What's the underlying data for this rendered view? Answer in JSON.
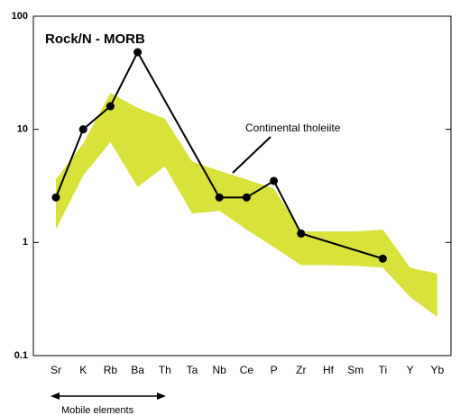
{
  "chart_data": {
    "type": "line",
    "title": "Rock/N - MORB",
    "categories": [
      "Sr",
      "K",
      "Rb",
      "Ba",
      "Th",
      "Ta",
      "Nb",
      "Ce",
      "P",
      "Zr",
      "Hf",
      "Sm",
      "Ti",
      "Y",
      "Yb"
    ],
    "series": [
      {
        "name": "Rock",
        "color": "#000000",
        "values": [
          2.5,
          10,
          16,
          48,
          null,
          null,
          2.5,
          2.5,
          3.5,
          1.2,
          null,
          null,
          0.72,
          null,
          null
        ]
      }
    ],
    "band": {
      "name": "Continental tholeiite",
      "color": "#d9e23a",
      "upper": [
        3.6,
        7.5,
        21,
        15.5,
        12.4,
        5.2,
        4.3,
        3.6,
        3.0,
        1.25,
        1.25,
        1.25,
        1.3,
        0.6,
        0.53
      ],
      "lower": [
        1.3,
        3.9,
        7.7,
        3.1,
        4.7,
        1.8,
        1.9,
        1.3,
        0.91,
        0.63,
        0.63,
        0.62,
        0.6,
        0.33,
        0.22
      ]
    },
    "annotation": "Mobile elements",
    "log_y": true,
    "ylim": [
      0.1,
      100
    ],
    "yticks": [
      0.1,
      1,
      10,
      100
    ]
  }
}
